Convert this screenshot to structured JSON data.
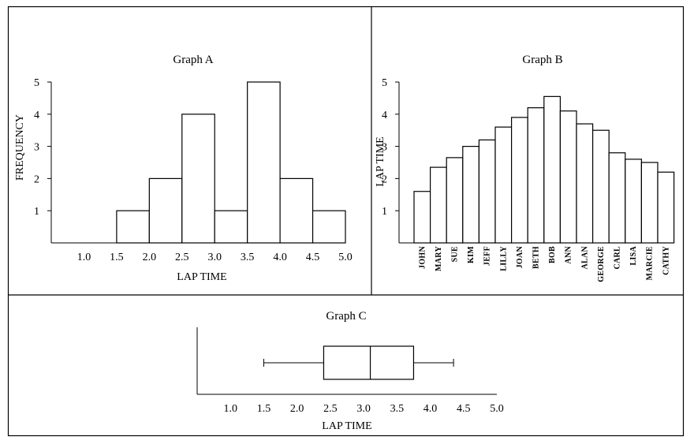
{
  "chart_data": [
    {
      "id": "A",
      "type": "bar",
      "title": "Graph A",
      "xlabel": "LAP TIME",
      "ylabel": "FREQUENCY",
      "xticks": [
        "1.0",
        "1.5",
        "2.0",
        "2.5",
        "3.0",
        "3.5",
        "4.0",
        "4.5",
        "5.0"
      ],
      "yticks": [
        "1",
        "2",
        "3",
        "4",
        "5"
      ],
      "xlim": [
        0.5,
        5.0
      ],
      "ylim": [
        0,
        5
      ],
      "bins": [
        {
          "x0": 1.5,
          "x1": 2.0,
          "value": 1
        },
        {
          "x0": 2.0,
          "x1": 2.5,
          "value": 2
        },
        {
          "x0": 2.5,
          "x1": 3.0,
          "value": 4
        },
        {
          "x0": 3.0,
          "x1": 3.5,
          "value": 1
        },
        {
          "x0": 3.5,
          "x1": 4.0,
          "value": 5
        },
        {
          "x0": 4.0,
          "x1": 4.5,
          "value": 2
        },
        {
          "x0": 4.5,
          "x1": 5.0,
          "value": 1
        }
      ]
    },
    {
      "id": "B",
      "type": "bar",
      "title": "Graph B",
      "ylabel": "LAP TIME",
      "yticks": [
        "1",
        "2",
        "3",
        "4",
        "5"
      ],
      "ylim": [
        0,
        5
      ],
      "categories": [
        "JOHN",
        "MARY",
        "SUE",
        "KIM",
        "JEFF",
        "LILLY",
        "JOAN",
        "BETH",
        "BOB",
        "ANN",
        "ALAN",
        "GEORGE",
        "CARL",
        "LISA",
        "MARCIE",
        "CATHY"
      ],
      "values": [
        1.6,
        2.35,
        2.65,
        3.0,
        3.2,
        3.6,
        3.9,
        4.2,
        4.55,
        4.1,
        3.7,
        3.5,
        2.8,
        2.6,
        2.5,
        2.2
      ]
    },
    {
      "id": "C",
      "type": "box",
      "title": "Graph C",
      "xlabel": "LAP TIME",
      "xticks": [
        "1.0",
        "1.5",
        "2.0",
        "2.5",
        "3.0",
        "3.5",
        "4.0",
        "4.5",
        "5.0"
      ],
      "xlim": [
        0.5,
        5.0
      ],
      "min": 1.5,
      "q1": 2.4,
      "median": 3.1,
      "q3": 3.75,
      "max": 4.35
    }
  ]
}
